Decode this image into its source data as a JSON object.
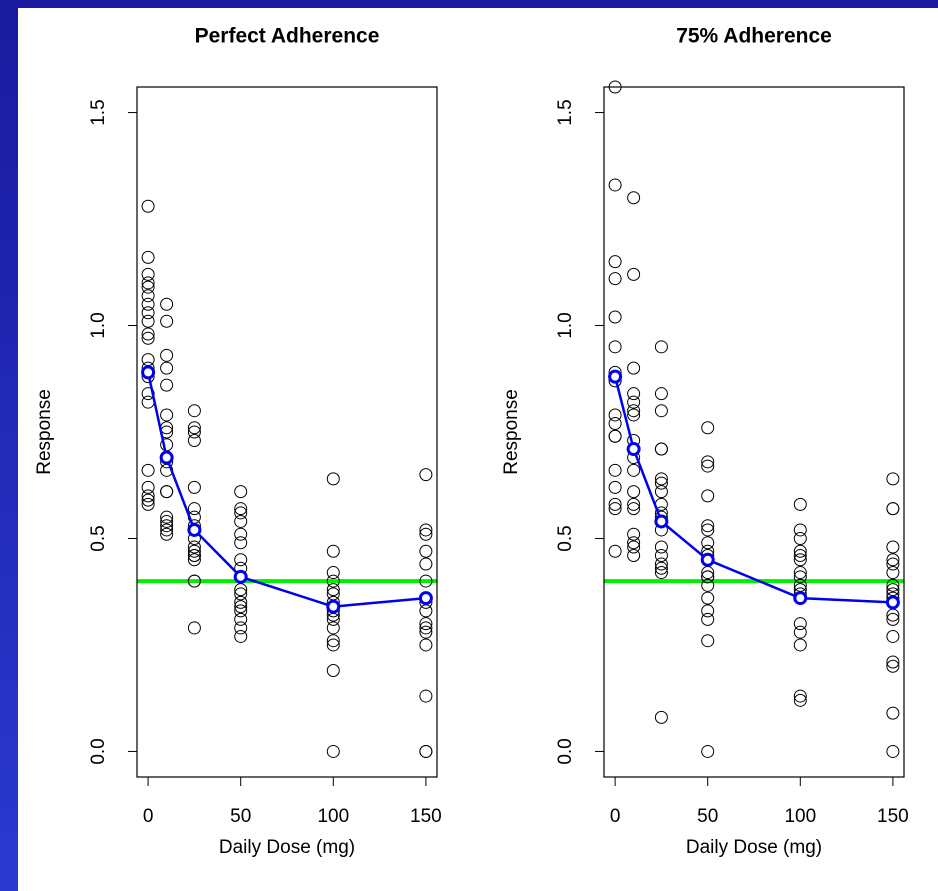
{
  "chart_data": [
    {
      "type": "scatter",
      "title": "Perfect Adherence",
      "x_label": "Daily Dose (mg)",
      "y_label": "Response",
      "xlim": [
        -6,
        156
      ],
      "ylim": [
        -0.06,
        1.56
      ],
      "xticks": [
        0,
        50,
        100,
        150
      ],
      "yticks": [
        {
          "value": 0,
          "label": "0.0"
        },
        {
          "value": 0.5,
          "label": "0.5"
        },
        {
          "value": 1,
          "label": "1.0"
        },
        {
          "value": 1.5,
          "label": "1.5"
        }
      ],
      "hline": {
        "value": 0.4,
        "color": "#00ee00"
      },
      "series": [
        {
          "style": "points",
          "color": "#000000",
          "x": [
            0,
            0,
            0,
            0,
            0,
            0,
            0,
            0,
            0,
            0,
            0,
            0,
            0,
            0,
            0,
            0,
            0,
            0,
            0,
            0,
            0,
            10,
            10,
            10,
            10,
            10,
            10,
            10,
            10,
            10,
            10,
            10,
            10,
            10,
            10,
            10,
            10,
            10,
            10,
            25,
            25,
            25,
            25,
            25,
            25,
            25,
            25,
            25,
            25,
            25,
            25,
            25,
            25,
            25,
            25,
            25,
            50,
            50,
            50,
            50,
            50,
            50,
            50,
            50,
            50,
            50,
            50,
            50,
            50,
            50,
            50,
            50,
            50,
            100,
            100,
            100,
            100,
            100,
            100,
            100,
            100,
            100,
            100,
            100,
            100,
            100,
            100,
            100,
            100,
            150,
            150,
            150,
            150,
            150,
            150,
            150,
            150,
            150,
            150,
            150,
            150,
            150,
            150,
            150,
            150
          ],
          "values": [
            1.28,
            1.16,
            1.12,
            1.1,
            1.09,
            1.07,
            1.05,
            1.03,
            1.01,
            0.98,
            0.97,
            0.92,
            0.9,
            0.88,
            0.84,
            0.82,
            0.66,
            0.62,
            0.6,
            0.59,
            0.58,
            1.05,
            1.01,
            0.93,
            0.9,
            0.86,
            0.79,
            0.76,
            0.75,
            0.72,
            0.68,
            0.66,
            0.61,
            0.61,
            0.55,
            0.54,
            0.53,
            0.52,
            0.51,
            0.8,
            0.76,
            0.75,
            0.73,
            0.62,
            0.57,
            0.55,
            0.53,
            0.5,
            0.48,
            0.47,
            0.46,
            0.46,
            0.45,
            0.4,
            0.4,
            0.29,
            0.61,
            0.57,
            0.56,
            0.54,
            0.51,
            0.49,
            0.45,
            0.43,
            0.41,
            0.38,
            0.37,
            0.35,
            0.34,
            0.33,
            0.31,
            0.29,
            0.27,
            0.64,
            0.47,
            0.42,
            0.4,
            0.38,
            0.37,
            0.35,
            0.34,
            0.33,
            0.32,
            0.31,
            0.29,
            0.26,
            0.25,
            0.19,
            0.0,
            0.65,
            0.52,
            0.51,
            0.47,
            0.44,
            0.4,
            0.36,
            0.35,
            0.33,
            0.3,
            0.29,
            0.28,
            0.25,
            0.13,
            0.0,
            0.0
          ]
        },
        {
          "style": "line-markers",
          "color": "#0000ee",
          "x": [
            0,
            10,
            25,
            50,
            100,
            150
          ],
          "values": [
            0.89,
            0.69,
            0.52,
            0.41,
            0.34,
            0.36
          ]
        }
      ]
    },
    {
      "type": "scatter",
      "title": "75% Adherence",
      "x_label": "Daily Dose (mg)",
      "y_label": "Response",
      "xlim": [
        -6,
        156
      ],
      "ylim": [
        -0.06,
        1.56
      ],
      "xticks": [
        0,
        50,
        100,
        150
      ],
      "yticks": [
        {
          "value": 0,
          "label": "0.0"
        },
        {
          "value": 0.5,
          "label": "0.5"
        },
        {
          "value": 1,
          "label": "1.0"
        },
        {
          "value": 1.5,
          "label": "1.5"
        }
      ],
      "hline": {
        "value": 0.4,
        "color": "#00ee00"
      },
      "series": [
        {
          "style": "points",
          "color": "#000000",
          "x": [
            0,
            0,
            0,
            0,
            0,
            0,
            0,
            0,
            0,
            0,
            0,
            0,
            0,
            0,
            0,
            0,
            0,
            10,
            10,
            10,
            10,
            10,
            10,
            10,
            10,
            10,
            10,
            10,
            10,
            10,
            10,
            10,
            10,
            10,
            25,
            25,
            25,
            25,
            25,
            25,
            25,
            25,
            25,
            25,
            25,
            25,
            25,
            25,
            25,
            25,
            25,
            25,
            50,
            50,
            50,
            50,
            50,
            50,
            50,
            50,
            50,
            50,
            50,
            50,
            50,
            50,
            50,
            50,
            50,
            50,
            50,
            100,
            100,
            100,
            100,
            100,
            100,
            100,
            100,
            100,
            100,
            100,
            100,
            100,
            100,
            100,
            100,
            100,
            150,
            150,
            150,
            150,
            150,
            150,
            150,
            150,
            150,
            150,
            150,
            150,
            150,
            150,
            150,
            150,
            150,
            150
          ],
          "values": [
            1.56,
            1.33,
            1.15,
            1.11,
            1.02,
            0.95,
            0.89,
            0.87,
            0.79,
            0.77,
            0.74,
            0.74,
            0.66,
            0.62,
            0.58,
            0.57,
            0.47,
            1.3,
            1.12,
            0.9,
            0.84,
            0.82,
            0.8,
            0.79,
            0.73,
            0.69,
            0.66,
            0.61,
            0.58,
            0.57,
            0.51,
            0.49,
            0.48,
            0.46,
            0.95,
            0.84,
            0.8,
            0.71,
            0.71,
            0.64,
            0.63,
            0.61,
            0.58,
            0.56,
            0.55,
            0.52,
            0.48,
            0.46,
            0.44,
            0.43,
            0.42,
            0.08,
            0.76,
            0.68,
            0.67,
            0.6,
            0.53,
            0.52,
            0.49,
            0.47,
            0.46,
            0.45,
            0.42,
            0.41,
            0.41,
            0.39,
            0.36,
            0.33,
            0.31,
            0.26,
            0.0,
            0.58,
            0.52,
            0.5,
            0.47,
            0.46,
            0.45,
            0.42,
            0.41,
            0.39,
            0.38,
            0.37,
            0.36,
            0.3,
            0.28,
            0.25,
            0.13,
            0.12,
            0.64,
            0.57,
            0.57,
            0.48,
            0.45,
            0.44,
            0.42,
            0.39,
            0.38,
            0.37,
            0.36,
            0.32,
            0.31,
            0.27,
            0.21,
            0.2,
            0.09,
            0.0
          ]
        },
        {
          "style": "line-markers",
          "color": "#0000ee",
          "x": [
            0,
            10,
            25,
            50,
            100,
            150
          ],
          "values": [
            0.88,
            0.71,
            0.54,
            0.45,
            0.36,
            0.35
          ]
        }
      ]
    }
  ]
}
